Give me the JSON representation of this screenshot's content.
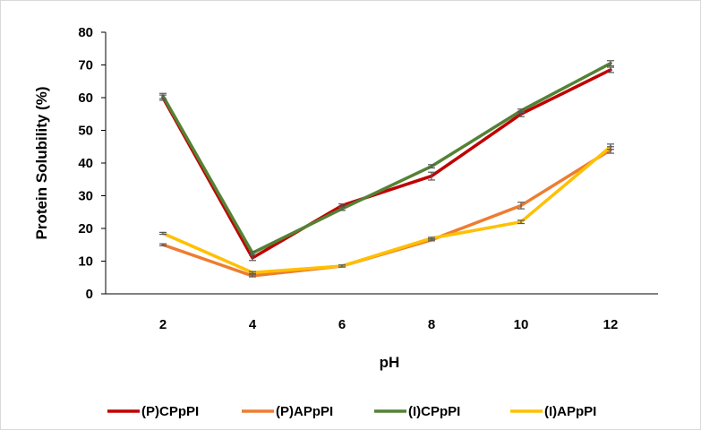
{
  "chart_data": {
    "type": "line",
    "title": "",
    "xlabel": "pH",
    "ylabel": "Protein Solubility (%)",
    "x": [
      2,
      4,
      6,
      8,
      10,
      12
    ],
    "xticks": [
      "2",
      "4",
      "6",
      "8",
      "10",
      "12"
    ],
    "ylim": [
      0,
      80
    ],
    "yticks": [
      "0",
      "10",
      "20",
      "30",
      "40",
      "50",
      "60",
      "70",
      "80"
    ],
    "grid": false,
    "legend_position": "bottom",
    "series": [
      {
        "name": "(P)CPpPI",
        "color": "#c00000",
        "values": [
          60,
          11,
          27,
          36,
          55,
          68.5
        ],
        "errors": [
          0.8,
          0.8,
          0.5,
          1.2,
          0.8,
          0.8
        ]
      },
      {
        "name": "(P)APpPI",
        "color": "#ed7d31",
        "values": [
          15,
          5.5,
          8.5,
          16.5,
          27,
          44
        ],
        "errors": [
          0.3,
          0.3,
          0.3,
          0.3,
          1.0,
          1.0
        ]
      },
      {
        "name": "(I)CPpPI",
        "color": "#548235",
        "values": [
          60.5,
          12.5,
          26,
          39,
          56,
          70.5
        ],
        "errors": [
          0.8,
          0.5,
          0.5,
          0.5,
          0.5,
          0.8
        ]
      },
      {
        "name": "(I)APpPI",
        "color": "#ffc000",
        "values": [
          18.5,
          6.5,
          8.5,
          17,
          22,
          45
        ],
        "errors": [
          0.3,
          0.3,
          0.3,
          0.3,
          0.5,
          0.8
        ]
      }
    ]
  }
}
